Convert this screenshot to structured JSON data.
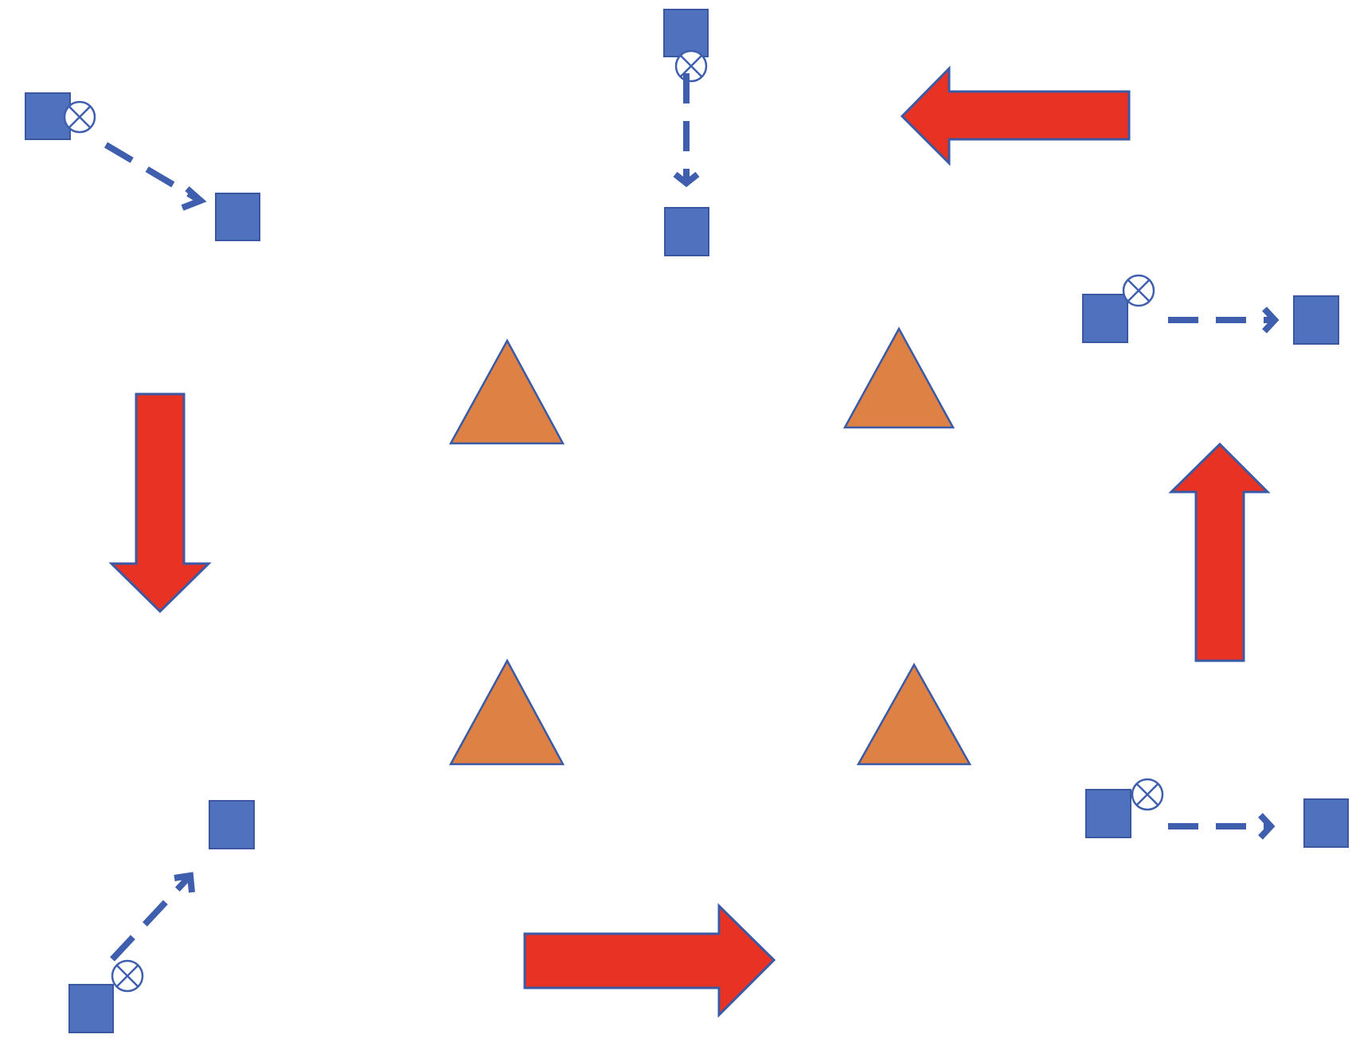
{
  "colors": {
    "square_fill": "#4f71be",
    "triangle_fill": "#dd8145",
    "arrow_fill": "#e83324",
    "outline": "#3b5aa5"
  },
  "connectors": [
    {
      "name": "connector-top-left",
      "direction": "down-right"
    },
    {
      "name": "connector-top-center",
      "direction": "down"
    },
    {
      "name": "connector-right-upper",
      "direction": "right"
    },
    {
      "name": "connector-right-lower",
      "direction": "right"
    },
    {
      "name": "connector-bottom-left",
      "direction": "up-right"
    }
  ],
  "block_arrows": [
    {
      "name": "red-arrow-top",
      "direction": "left"
    },
    {
      "name": "red-arrow-left",
      "direction": "down"
    },
    {
      "name": "red-arrow-right",
      "direction": "up"
    },
    {
      "name": "red-arrow-bottom",
      "direction": "right"
    }
  ],
  "triangles": [
    {
      "name": "triangle-top-left"
    },
    {
      "name": "triangle-top-right"
    },
    {
      "name": "triangle-bottom-left"
    },
    {
      "name": "triangle-bottom-right"
    }
  ],
  "x_marker_icon": "circled-x-icon"
}
